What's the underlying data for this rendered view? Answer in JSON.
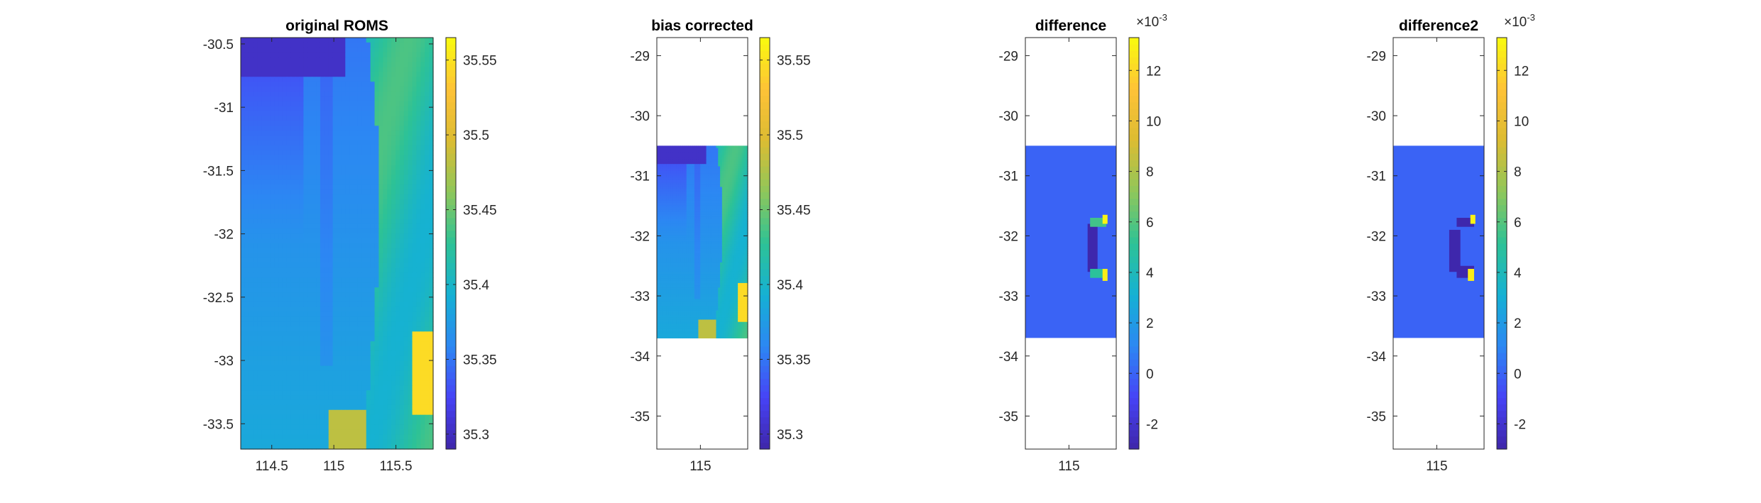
{
  "figure": {
    "background": "#ffffff",
    "colormap_name": "parula",
    "colormap_stops": [
      "#3e26a8",
      "#4743f6",
      "#2c87f3",
      "#15b1d4",
      "#2dc296",
      "#8ec75b",
      "#dcbc32",
      "#fec237",
      "#f9fb0e"
    ]
  },
  "chart_data": [
    {
      "type": "heatmap",
      "title": "original ROMS",
      "xticks": [
        "114.5",
        "115",
        "115.5"
      ],
      "yticks": [
        "-30.5",
        "-31",
        "-31.5",
        "-32",
        "-32.5",
        "-33",
        "-33.5"
      ],
      "xlim": [
        114.25,
        115.8
      ],
      "ylim": [
        -33.7,
        -30.45
      ],
      "data_extent": {
        "x": [
          114.25,
          115.8
        ],
        "y": [
          -33.7,
          -30.45
        ]
      },
      "colorbar": {
        "ticks": [
          "35.3",
          "35.35",
          "35.4",
          "35.45",
          "35.5",
          "35.55"
        ],
        "clim": [
          35.29,
          35.565
        ],
        "exponent": ""
      },
      "field": "salinity_nearshore_gradient"
    },
    {
      "type": "heatmap",
      "title": "bias corrected",
      "xticks": [
        "115"
      ],
      "yticks": [
        "-29",
        "-30",
        "-31",
        "-32",
        "-33",
        "-34",
        "-35"
      ],
      "xlim": [
        114.65,
        115.38
      ],
      "ylim": [
        -35.55,
        -28.7
      ],
      "data_extent": {
        "x": [
          114.65,
          115.38
        ],
        "y": [
          -33.7,
          -30.5
        ]
      },
      "colorbar": {
        "ticks": [
          "35.3",
          "35.35",
          "35.4",
          "35.45",
          "35.5",
          "35.55"
        ],
        "clim": [
          35.29,
          35.565
        ],
        "exponent": ""
      },
      "field": "salinity_nearshore_gradient"
    },
    {
      "type": "heatmap",
      "title": "difference",
      "xticks": [
        "115"
      ],
      "yticks": [
        "-29",
        "-30",
        "-31",
        "-32",
        "-33",
        "-34",
        "-35"
      ],
      "xlim": [
        114.65,
        115.38
      ],
      "ylim": [
        -35.55,
        -28.7
      ],
      "data_extent": {
        "x": [
          114.65,
          115.38
        ],
        "y": [
          -33.7,
          -30.5
        ]
      },
      "colorbar": {
        "ticks": [
          "-2",
          "0",
          "2",
          "4",
          "6",
          "8",
          "10",
          "12"
        ],
        "clim": [
          -3.0,
          13.3
        ],
        "exponent": "-3"
      },
      "background_value": 0,
      "patches": [
        {
          "x": [
            115.15,
            115.23
          ],
          "y": [
            -32.6,
            -31.8
          ],
          "value": -2.9
        },
        {
          "x": [
            115.17,
            115.3
          ],
          "y": [
            -31.85,
            -31.7
          ],
          "value": 5.6
        },
        {
          "x": [
            115.27,
            115.31
          ],
          "y": [
            -31.8,
            -31.65
          ],
          "value": 13.0
        },
        {
          "x": [
            115.17,
            115.3
          ],
          "y": [
            -32.7,
            -32.55
          ],
          "value": 5.0
        },
        {
          "x": [
            115.27,
            115.31
          ],
          "y": [
            -32.75,
            -32.55
          ],
          "value": 12.8
        }
      ]
    },
    {
      "type": "heatmap",
      "title": "difference2",
      "xticks": [
        "115"
      ],
      "yticks": [
        "-29",
        "-30",
        "-31",
        "-32",
        "-33",
        "-34",
        "-35"
      ],
      "xlim": [
        114.65,
        115.38
      ],
      "ylim": [
        -35.55,
        -28.7
      ],
      "data_extent": {
        "x": [
          114.65,
          115.38
        ],
        "y": [
          -33.7,
          -30.5
        ]
      },
      "colorbar": {
        "ticks": [
          "-2",
          "0",
          "2",
          "4",
          "6",
          "8",
          "10",
          "12"
        ],
        "clim": [
          -3.0,
          13.3
        ],
        "exponent": "-3"
      },
      "background_value": 0,
      "patches": [
        {
          "x": [
            115.1,
            115.19
          ],
          "y": [
            -32.6,
            -31.9
          ],
          "value": -2.9
        },
        {
          "x": [
            115.16,
            115.3
          ],
          "y": [
            -31.85,
            -31.7
          ],
          "value": -2.9
        },
        {
          "x": [
            115.16,
            115.3
          ],
          "y": [
            -32.7,
            -32.5
          ],
          "value": -2.9
        },
        {
          "x": [
            115.27,
            115.31
          ],
          "y": [
            -31.8,
            -31.65
          ],
          "value": 13.0
        },
        {
          "x": [
            115.25,
            115.3
          ],
          "y": [
            -32.75,
            -32.55
          ],
          "value": 12.8
        }
      ]
    }
  ]
}
